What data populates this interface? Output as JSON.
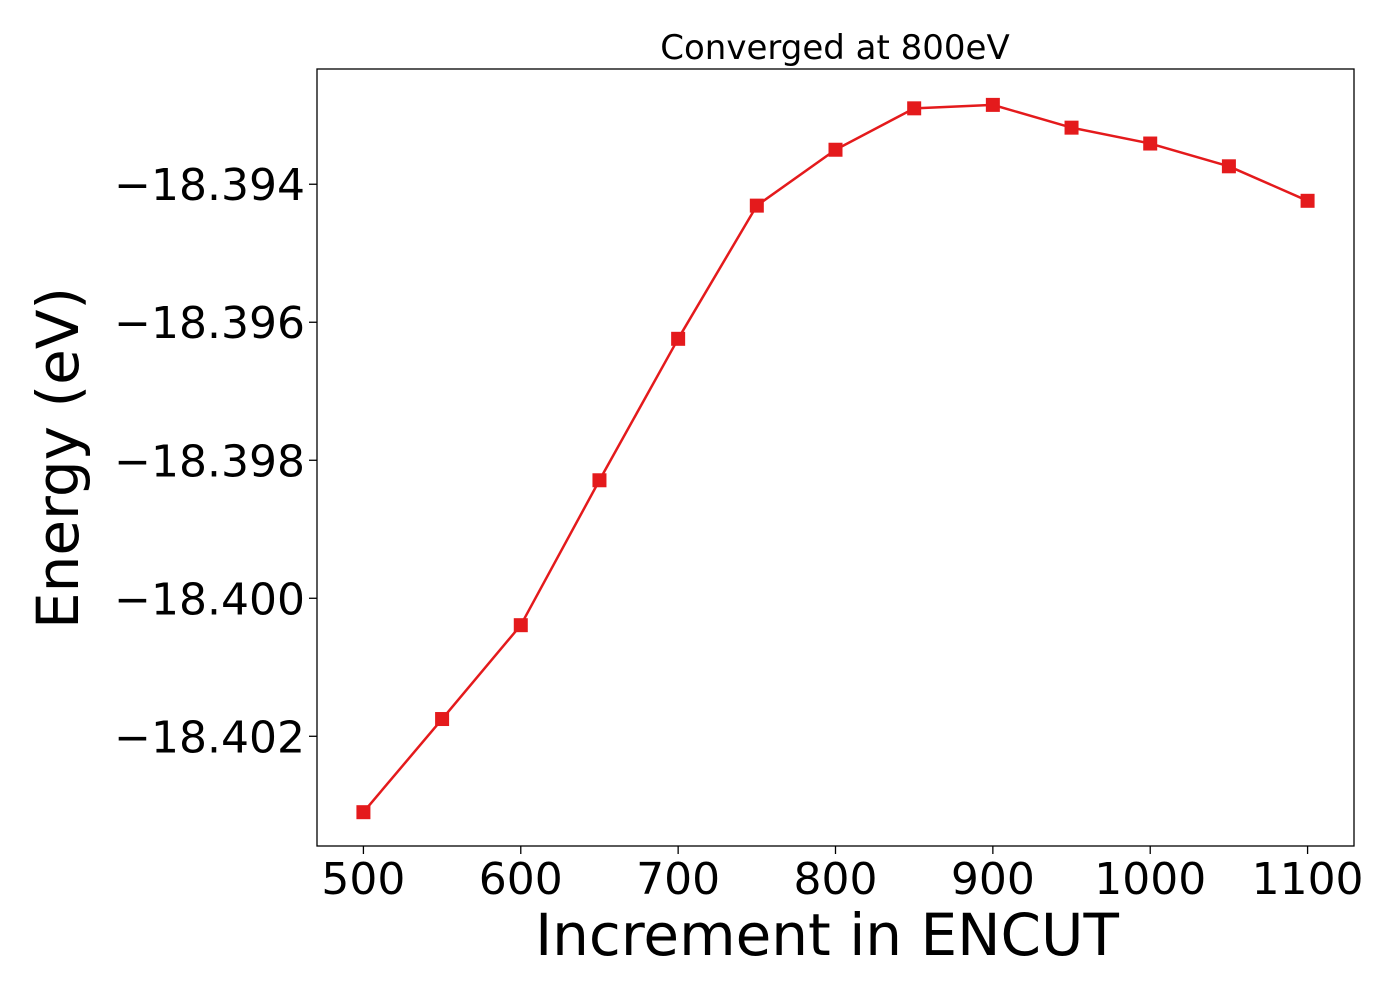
{
  "chart_data": {
    "type": "line",
    "title": "Converged at 800eV",
    "xlabel": "Increment in ENCUT",
    "ylabel": "Energy (eV)",
    "x": [
      500,
      550,
      600,
      650,
      700,
      750,
      800,
      850,
      900,
      950,
      1000,
      1050,
      1100
    ],
    "series": [
      {
        "values": [
          -18.4031,
          -18.40175,
          -18.40039,
          -18.39829,
          -18.39624,
          -18.39431,
          -18.3935,
          -18.3929,
          -18.39285,
          -18.39318,
          -18.39341,
          -18.39374,
          -18.39424
        ],
        "color": "#e41a1c",
        "marker": "square"
      }
    ],
    "xticks": [
      500,
      600,
      700,
      800,
      900,
      1000,
      1100
    ],
    "xtick_labels": [
      "500",
      "600",
      "700",
      "800",
      "900",
      "1000",
      "1100"
    ],
    "yticks": [
      -18.394,
      -18.396,
      -18.398,
      -18.4,
      -18.402
    ],
    "ytick_labels": [
      "−18.394",
      "−18.396",
      "−18.398",
      "−18.400",
      "−18.402"
    ],
    "xlim": [
      470.5,
      1129.5
    ],
    "ylim": [
      -18.40359,
      -18.39233
    ],
    "grid": false,
    "legend": false
  }
}
